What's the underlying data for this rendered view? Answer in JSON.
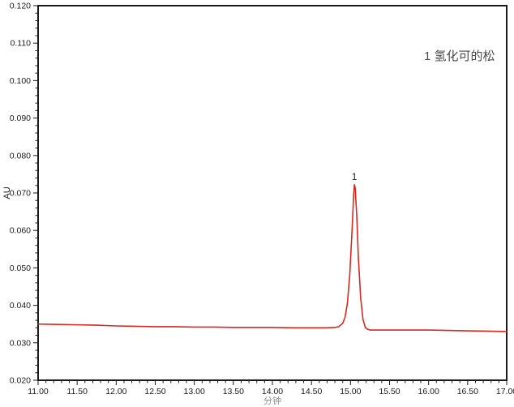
{
  "page": {
    "background": "#ffffff"
  },
  "chart_data": {
    "type": "line",
    "kind": "hplc-chromatogram",
    "title": "",
    "xlabel": "分钟",
    "ylabel": "AU",
    "xlim": [
      11.0,
      17.0
    ],
    "ylim": [
      0.02,
      0.12
    ],
    "x_major_step": 0.5,
    "x_minor_step": 0.1,
    "y_major_step": 0.01,
    "y_minor_step": 0.002,
    "x_tick_decimals": 2,
    "y_tick_decimals": 3,
    "grid": false,
    "frame": true,
    "legend_position": "none",
    "axis_color": "#1a1a1a",
    "tick_label_color": "#1a1a1a",
    "xlabel_color": "#8f8f8f",
    "ylabel_color": "#1a1a1a",
    "x_tick_labels": [
      "11.00",
      "11.50",
      "12.00",
      "12.50",
      "13.00",
      "13.50",
      "14.00",
      "14.50",
      "15.00",
      "15.50",
      "16.00",
      "16.50",
      "17.00"
    ],
    "y_tick_labels": [
      "0.020",
      "0.030",
      "0.040",
      "0.050",
      "0.060",
      "0.070",
      "0.080",
      "0.090",
      "0.100",
      "0.110",
      "0.120"
    ],
    "series": [
      {
        "name": "氢化可的松",
        "color": "#d42a24",
        "line_width": 1.6,
        "points": [
          [
            11.0,
            0.035
          ],
          [
            11.25,
            0.0349
          ],
          [
            11.5,
            0.0348
          ],
          [
            11.75,
            0.0347
          ],
          [
            12.0,
            0.0345
          ],
          [
            12.25,
            0.0344
          ],
          [
            12.5,
            0.0343
          ],
          [
            12.75,
            0.0343
          ],
          [
            13.0,
            0.0342
          ],
          [
            13.25,
            0.0342
          ],
          [
            13.5,
            0.0341
          ],
          [
            13.75,
            0.0341
          ],
          [
            14.0,
            0.0341
          ],
          [
            14.25,
            0.034
          ],
          [
            14.5,
            0.034
          ],
          [
            14.7,
            0.034
          ],
          [
            14.8,
            0.0341
          ],
          [
            14.85,
            0.0343
          ],
          [
            14.9,
            0.0352
          ],
          [
            14.93,
            0.0368
          ],
          [
            14.96,
            0.0405
          ],
          [
            14.99,
            0.048
          ],
          [
            15.02,
            0.06
          ],
          [
            15.04,
            0.0695
          ],
          [
            15.05,
            0.0722
          ],
          [
            15.06,
            0.0713
          ],
          [
            15.08,
            0.064
          ],
          [
            15.1,
            0.053
          ],
          [
            15.13,
            0.042
          ],
          [
            15.16,
            0.0362
          ],
          [
            15.19,
            0.0341
          ],
          [
            15.22,
            0.0336
          ],
          [
            15.25,
            0.0334
          ],
          [
            15.5,
            0.0334
          ],
          [
            15.75,
            0.0334
          ],
          [
            16.0,
            0.0334
          ],
          [
            16.25,
            0.0333
          ],
          [
            16.5,
            0.0332
          ],
          [
            16.75,
            0.0331
          ],
          [
            17.0,
            0.033
          ]
        ]
      }
    ],
    "annotations": {
      "peak_label": {
        "text": "1",
        "x": 15.05,
        "y": 0.0735,
        "color": "#222222",
        "font_size": 12
      },
      "compound_note": {
        "text": "1 氢化可的松",
        "x": 16.85,
        "y": 0.1055,
        "anchor": "end",
        "color": "#4a4a4a",
        "font_size": 15
      }
    }
  }
}
